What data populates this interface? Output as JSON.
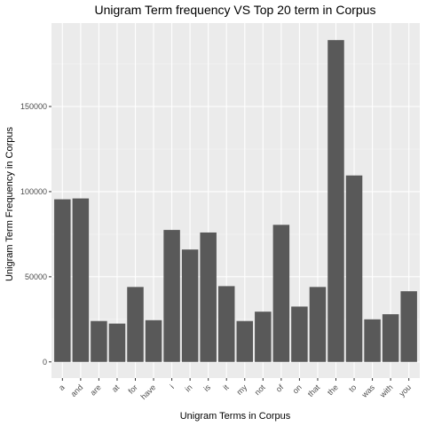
{
  "chart_data": {
    "type": "bar",
    "title": "Unigram Term frequency VS Top 20 term in Corpus",
    "xlabel": "Unigram Terms in Corpus",
    "ylabel": "Unigram Term Frequency in Corpus",
    "categories": [
      "a",
      "and",
      "are",
      "at",
      "for",
      "have",
      "i",
      "in",
      "is",
      "it",
      "my",
      "not",
      "of",
      "on",
      "that",
      "the",
      "to",
      "was",
      "with",
      "you"
    ],
    "values": [
      95500,
      96000,
      24000,
      22500,
      44000,
      24500,
      77500,
      66000,
      76000,
      44500,
      24000,
      29500,
      80500,
      32500,
      44000,
      189000,
      109500,
      25000,
      28000,
      41500
    ],
    "yticks": [
      0,
      50000,
      100000,
      150000
    ],
    "ytick_labels": [
      "0",
      "50000",
      "100000",
      "150000"
    ],
    "ylim": [
      -9500,
      199000
    ],
    "grid": true,
    "colors": {
      "bar": "#595959",
      "panel": "#ebebeb",
      "grid_major": "#ffffff",
      "grid_minor": "#f5f5f5"
    }
  }
}
